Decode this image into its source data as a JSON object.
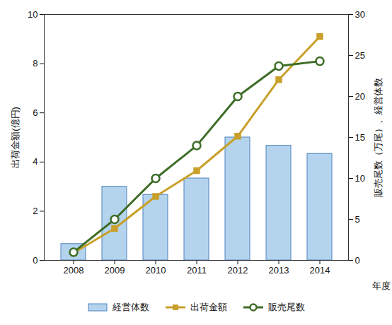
{
  "chart_data": {
    "type": "bar_line",
    "categories": [
      "2008",
      "2009",
      "2010",
      "2011",
      "2012",
      "2013",
      "2014"
    ],
    "xlabel": "年度",
    "ylabel": "出荷金額(億円)",
    "y2label": "販売尾数（万尾）、経営体数",
    "ylim": [
      0,
      10
    ],
    "yticks": [
      0,
      2,
      4,
      6,
      8,
      10
    ],
    "y2lim": [
      0,
      30
    ],
    "y2ticks": [
      0,
      5,
      10,
      15,
      20,
      25,
      30
    ],
    "legend": "bottom",
    "series": [
      {
        "name": "経営体数",
        "type": "bar",
        "axis": "y2",
        "color": "#b4d4ee",
        "values": [
          2,
          9,
          8,
          10,
          15,
          14,
          13
        ]
      },
      {
        "name": "出荷金額",
        "type": "line",
        "axis": "y",
        "color": "#c8a02a",
        "marker": "square",
        "values": [
          0.3,
          1.3,
          2.6,
          3.65,
          5.05,
          7.35,
          9.1
        ]
      },
      {
        "name": "販売尾数",
        "type": "line",
        "axis": "y2",
        "color": "#3e6d28",
        "marker": "circle",
        "values": [
          1,
          5,
          10,
          14,
          20,
          23.7,
          24.3
        ]
      }
    ]
  }
}
